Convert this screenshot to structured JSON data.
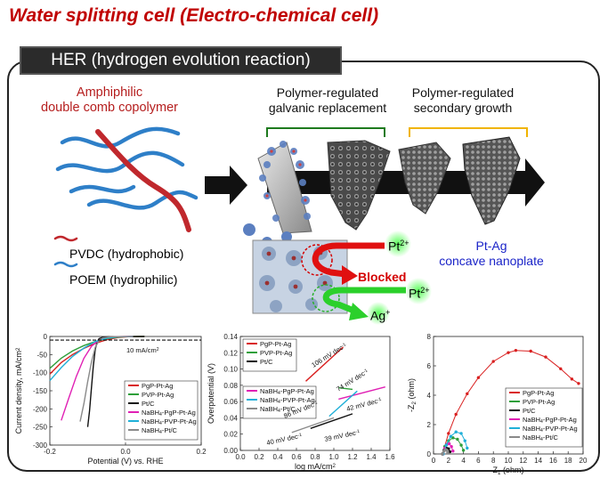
{
  "title": "Water splitting cell (Electro-chemical cell)",
  "her_banner": "HER (hydrogen evolution reaction)",
  "schematic": {
    "copolymer_label_1": "Amphiphilic",
    "copolymer_label_2": "double comb copolymer",
    "step1_label_1": "Polymer-regulated",
    "step1_label_2": "galvanic replacement",
    "step2_label_1": "Polymer-regulated",
    "step2_label_2": "secondary growth",
    "pvdc_label": "PVDC (hydrophobic)",
    "poem_label": "POEM (hydrophilic)",
    "product_label_1": "Pt-Ag",
    "product_label_2": "concave nanoplate",
    "pt_ion_1": "Pt",
    "pt_ion_2": "Pt",
    "pt_charge": "2+",
    "ag_ion": "Ag",
    "ag_charge": "+",
    "blocked_label": "Blocked",
    "colors": {
      "pvdc": "#c0282d",
      "poem": "#2e7fc8",
      "step1_bracket": "#1e7a1e",
      "step2_bracket": "#f0b400",
      "product": "#1a23c8",
      "blocked": "#d40000"
    }
  },
  "chart_lsv": {
    "type": "line",
    "xlabel": "Potential (V) vs. RHE",
    "ylabel": "Current density, mA/cm²",
    "xlim": [
      -0.2,
      0.2
    ],
    "ylim": [
      -300,
      0
    ],
    "xticks": [
      "-0.2",
      "0.0",
      "0.2"
    ],
    "yticks": [
      "0",
      "-50",
      "-100",
      "-150",
      "-200",
      "-250",
      "-300"
    ],
    "annotation": "10 mA/cm²",
    "reference_line_y": -10,
    "series": [
      {
        "name": "PgP-Pt-Ag",
        "color": "#d92020",
        "values": [
          [
            -0.2,
            -104
          ],
          [
            -0.17,
            -72
          ],
          [
            -0.14,
            -50
          ],
          [
            -0.11,
            -33
          ],
          [
            -0.08,
            -19
          ],
          [
            -0.05,
            -9
          ],
          [
            -0.02,
            -3
          ],
          [
            0.01,
            -0.5
          ],
          [
            0.05,
            0
          ]
        ]
      },
      {
        "name": "PVP-Pt-Ag",
        "color": "#2e9f3a",
        "values": [
          [
            -0.2,
            -88
          ],
          [
            -0.17,
            -60
          ],
          [
            -0.14,
            -40
          ],
          [
            -0.11,
            -25
          ],
          [
            -0.08,
            -14
          ],
          [
            -0.05,
            -6
          ],
          [
            -0.02,
            -2
          ],
          [
            0.01,
            -0.3
          ],
          [
            0.05,
            0
          ]
        ]
      },
      {
        "name": "Pt/C",
        "color": "#111111",
        "values": [
          [
            -0.1,
            -250
          ],
          [
            -0.095,
            -205
          ],
          [
            -0.09,
            -140
          ],
          [
            -0.085,
            -80
          ],
          [
            -0.08,
            -36
          ],
          [
            -0.075,
            -15
          ],
          [
            -0.07,
            -6
          ],
          [
            -0.06,
            -2
          ],
          [
            -0.03,
            -0.5
          ],
          [
            0.05,
            0
          ]
        ]
      },
      {
        "name": "NaBH₄-PgP-Pt-Ag",
        "color": "#e020b4",
        "values": [
          [
            -0.17,
            -232
          ],
          [
            -0.15,
            -170
          ],
          [
            -0.13,
            -110
          ],
          [
            -0.11,
            -60
          ],
          [
            -0.09,
            -27
          ],
          [
            -0.07,
            -10
          ],
          [
            -0.05,
            -3
          ],
          [
            -0.02,
            -0.5
          ],
          [
            0.02,
            0
          ]
        ]
      },
      {
        "name": "NaBH₄-PVP-Pt-Ag",
        "color": "#20b0d8",
        "values": [
          [
            -0.2,
            -122
          ],
          [
            -0.17,
            -86
          ],
          [
            -0.14,
            -55
          ],
          [
            -0.11,
            -32
          ],
          [
            -0.08,
            -14
          ],
          [
            -0.05,
            -5
          ],
          [
            -0.02,
            -1
          ],
          [
            0.02,
            0
          ]
        ]
      },
      {
        "name": "NaBH₄-Pt/C",
        "color": "#8a8a8a",
        "values": [
          [
            -0.12,
            -235
          ],
          [
            -0.11,
            -185
          ],
          [
            -0.1,
            -125
          ],
          [
            -0.09,
            -70
          ],
          [
            -0.08,
            -30
          ],
          [
            -0.07,
            -11
          ],
          [
            -0.06,
            -4
          ],
          [
            -0.04,
            -1
          ],
          [
            0.02,
            0
          ]
        ]
      }
    ]
  },
  "chart_tafel": {
    "type": "line",
    "xlabel": "log mA/cm²",
    "ylabel": "Overpotential (V)",
    "xlim": [
      0,
      1.6
    ],
    "ylim": [
      0,
      0.14
    ],
    "xticks": [
      "0.0",
      "0.2",
      "0.4",
      "0.6",
      "0.8",
      "1.0",
      "1.2",
      "1.4",
      "1.6"
    ],
    "yticks": [
      "0.00",
      "0.02",
      "0.04",
      "0.06",
      "0.08",
      "0.10",
      "0.12",
      "0.14"
    ],
    "annotations": [
      "106 mV dec⁻¹",
      "74 mV dec⁻¹",
      "86 mV dec⁻¹",
      "42 mV dec⁻¹",
      "40 mV dec⁻¹",
      "39 mV dec⁻¹"
    ],
    "series": [
      {
        "name": "PgP-Pt-Ag",
        "color": "#d92020",
        "values": [
          [
            0.7,
            0.085
          ],
          [
            1.1,
            0.127
          ]
        ]
      },
      {
        "name": "PVP-Pt-Ag",
        "color": "#2e9f3a",
        "values": [
          [
            1.05,
            0.077
          ],
          [
            1.2,
            0.075
          ]
        ]
      },
      {
        "name": "Pt/C",
        "color": "#111111",
        "values": [
          [
            0.75,
            0.027
          ],
          [
            1.2,
            0.045
          ]
        ]
      },
      {
        "name": "NaBH₄-PgP-Pt-Ag",
        "color": "#e020b4",
        "values": [
          [
            1.05,
            0.063
          ],
          [
            1.55,
            0.078
          ]
        ]
      },
      {
        "name": "NaBH₄-PVP-Pt-Ag",
        "color": "#20b0d8",
        "values": [
          [
            0.95,
            0.042
          ],
          [
            1.25,
            0.073
          ]
        ]
      },
      {
        "name": "NaBH₄-Pt/C",
        "color": "#8a8a8a",
        "values": [
          [
            0.55,
            0.022
          ],
          [
            1.0,
            0.04
          ]
        ]
      }
    ]
  },
  "chart_nyquist": {
    "type": "scatter",
    "xlabel": "Z₁ (ohm)",
    "ylabel": "-Z₂ (ohm)",
    "xlim": [
      0,
      20
    ],
    "ylim": [
      0,
      8
    ],
    "xticks": [
      "0",
      "2",
      "4",
      "6",
      "8",
      "10",
      "12",
      "14",
      "16",
      "18",
      "20"
    ],
    "yticks": [
      "0",
      "2",
      "4",
      "6",
      "8"
    ],
    "series": [
      {
        "name": "PgP-Pt-Ag",
        "color": "#d92020",
        "values": [
          [
            1.2,
            0
          ],
          [
            2,
            1.4
          ],
          [
            3,
            2.7
          ],
          [
            4.5,
            4.1
          ],
          [
            6,
            5.2
          ],
          [
            8,
            6.3
          ],
          [
            10,
            6.9
          ],
          [
            11,
            7.05
          ],
          [
            13,
            7
          ],
          [
            15,
            6.6
          ],
          [
            17,
            5.8
          ],
          [
            18.5,
            5.1
          ],
          [
            19.4,
            4.8
          ]
        ]
      },
      {
        "name": "PVP-Pt-Ag",
        "color": "#2e9f3a",
        "values": [
          [
            1.2,
            0
          ],
          [
            1.5,
            0.5
          ],
          [
            2,
            0.9
          ],
          [
            2.6,
            1.1
          ],
          [
            3.2,
            1.0
          ],
          [
            3.7,
            0.6
          ],
          [
            4,
            0.25
          ]
        ]
      },
      {
        "name": "Pt/C",
        "color": "#111111",
        "values": [
          [
            1.2,
            0
          ],
          [
            1.4,
            0.25
          ],
          [
            1.7,
            0.4
          ],
          [
            2,
            0.35
          ],
          [
            2.2,
            0.15
          ]
        ]
      },
      {
        "name": "NaBH₄-PgP-Pt-Ag",
        "color": "#e020b4",
        "values": [
          [
            1.3,
            0
          ],
          [
            1.5,
            0.4
          ],
          [
            1.8,
            0.65
          ],
          [
            2.1,
            0.7
          ],
          [
            2.4,
            0.5
          ],
          [
            2.6,
            0.2
          ]
        ]
      },
      {
        "name": "NaBH₄-PVP-Pt-Ag",
        "color": "#20b0d8",
        "values": [
          [
            1.3,
            0
          ],
          [
            1.7,
            0.6
          ],
          [
            2.3,
            1.2
          ],
          [
            3,
            1.5
          ],
          [
            3.7,
            1.4
          ],
          [
            4.2,
            0.9
          ],
          [
            4.5,
            0.4
          ]
        ]
      },
      {
        "name": "NaBH₄-Pt/C",
        "color": "#8a8a8a",
        "values": [
          [
            1.2,
            0
          ],
          [
            1.4,
            0.2
          ],
          [
            1.6,
            0.3
          ],
          [
            1.8,
            0.25
          ],
          [
            1.9,
            0.1
          ]
        ]
      }
    ]
  }
}
